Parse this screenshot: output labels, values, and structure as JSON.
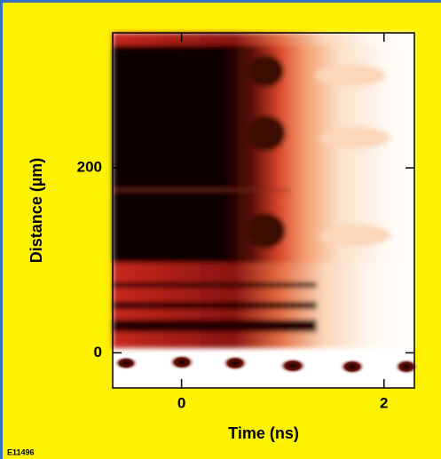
{
  "chart_data": {
    "type": "image",
    "x_label": "Time (ns)",
    "y_label": "Distance (µm)",
    "figure_id": "E11496",
    "xlim": [
      -0.68,
      2.3
    ],
    "xticks": [
      0,
      2
    ],
    "ylim": [
      -38,
      346
    ],
    "yticks": [
      0,
      200
    ]
  }
}
